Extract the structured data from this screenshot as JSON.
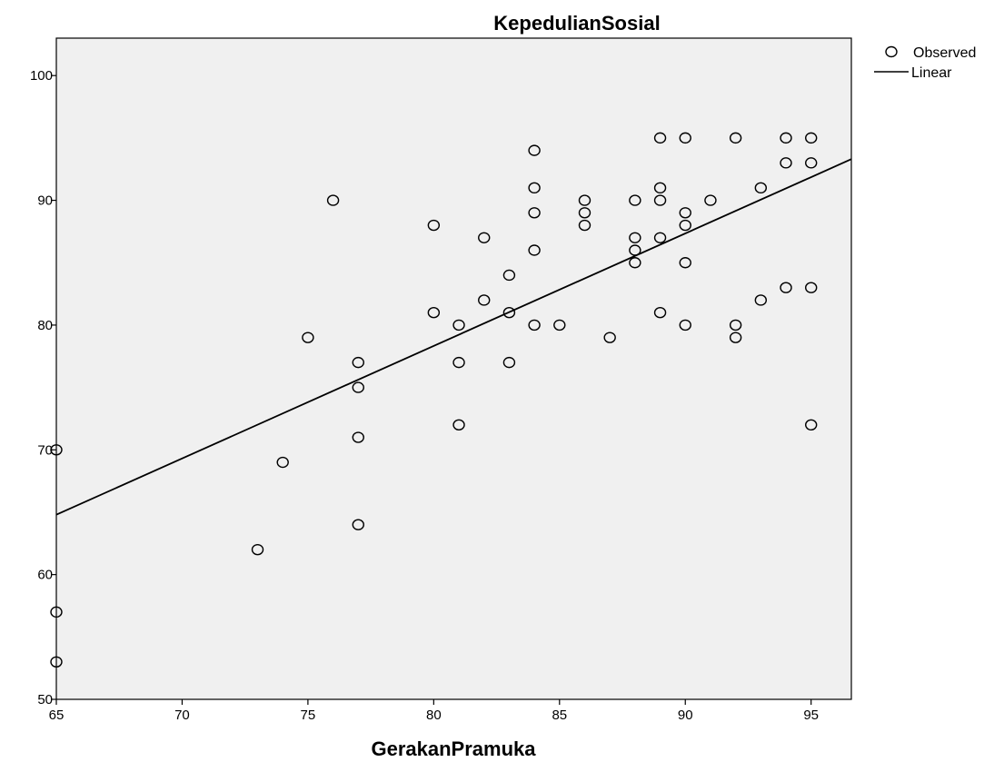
{
  "chart_data": {
    "type": "scatter",
    "title": "KepedulianSosial",
    "xlabel": "GerakanPramuka",
    "ylabel": "",
    "xlim": [
      65,
      96.6
    ],
    "ylim": [
      50,
      103
    ],
    "xticks": [
      65,
      70,
      75,
      80,
      85,
      90,
      95
    ],
    "yticks": [
      50,
      60,
      70,
      80,
      90,
      100
    ],
    "grid": false,
    "legend_position": "top-right",
    "legend": [
      "Observed",
      "Linear"
    ],
    "colors": {
      "plot_background": "#f0f0f0",
      "marker_stroke": "#000000",
      "line": "#000000"
    },
    "series": [
      {
        "name": "Observed",
        "kind": "scatter",
        "points": [
          [
            65,
            70
          ],
          [
            65,
            57
          ],
          [
            65,
            53
          ],
          [
            73,
            62
          ],
          [
            74,
            69
          ],
          [
            75,
            79
          ],
          [
            76,
            90
          ],
          [
            77,
            77
          ],
          [
            77,
            75
          ],
          [
            77,
            71
          ],
          [
            77,
            64
          ],
          [
            80,
            88
          ],
          [
            80,
            81
          ],
          [
            81,
            80
          ],
          [
            81,
            77
          ],
          [
            81,
            72
          ],
          [
            82,
            87
          ],
          [
            82,
            82
          ],
          [
            83,
            84
          ],
          [
            83,
            81
          ],
          [
            83,
            77
          ],
          [
            84,
            94
          ],
          [
            84,
            91
          ],
          [
            84,
            89
          ],
          [
            84,
            86
          ],
          [
            84,
            80
          ],
          [
            85,
            80
          ],
          [
            86,
            90
          ],
          [
            86,
            89
          ],
          [
            86,
            88
          ],
          [
            87,
            79
          ],
          [
            88,
            90
          ],
          [
            88,
            87
          ],
          [
            88,
            86
          ],
          [
            88,
            85
          ],
          [
            89,
            95
          ],
          [
            89,
            91
          ],
          [
            89,
            90
          ],
          [
            89,
            87
          ],
          [
            89,
            81
          ],
          [
            90,
            95
          ],
          [
            90,
            89
          ],
          [
            90,
            88
          ],
          [
            90,
            85
          ],
          [
            90,
            80
          ],
          [
            91,
            90
          ],
          [
            92,
            95
          ],
          [
            92,
            80
          ],
          [
            92,
            79
          ],
          [
            93,
            91
          ],
          [
            93,
            82
          ],
          [
            94,
            95
          ],
          [
            94,
            93
          ],
          [
            94,
            83
          ],
          [
            95,
            95
          ],
          [
            95,
            93
          ],
          [
            95,
            83
          ],
          [
            95,
            72
          ]
        ]
      },
      {
        "name": "Linear",
        "kind": "line",
        "points": [
          [
            65,
            64.8
          ],
          [
            96.6,
            93.3
          ]
        ]
      }
    ]
  }
}
